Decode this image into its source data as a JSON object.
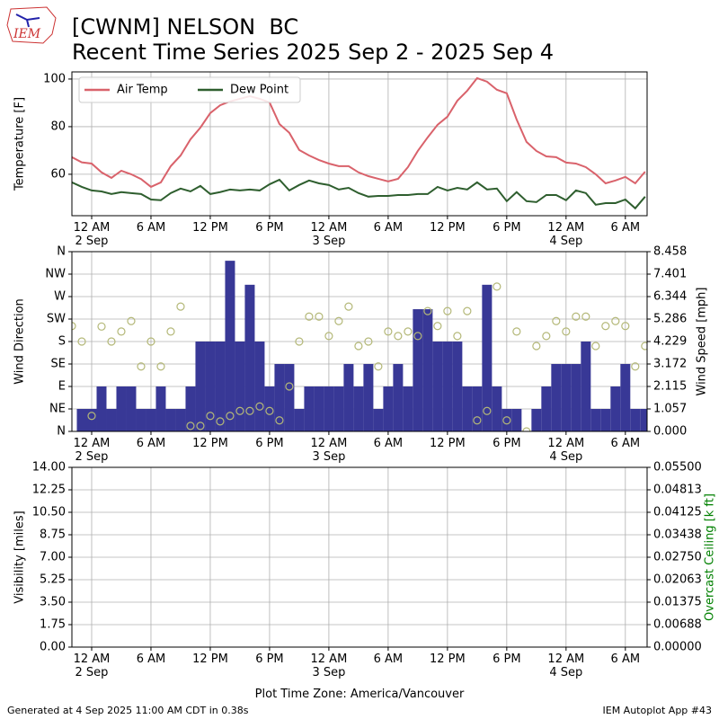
{
  "header": {
    "logo": "IEM",
    "title": "[CWNM] NELSON  BC",
    "subtitle": "Recent Time Series 2025 Sep 2 - 2025 Sep 4"
  },
  "footer": {
    "left": "Generated at 4 Sep 2025 11:00 AM CDT in 0.38s",
    "right": "IEM Autoplot App #43"
  },
  "chart_data": [
    {
      "type": "line",
      "ylabel": "Temperature [F]",
      "legend": "upper left",
      "grid": true,
      "xlim": [
        -2,
        56.2
      ],
      "ylim": [
        42.6,
        103
      ],
      "xticks": [
        {
          "value": 0,
          "label": "12 AM\n2 Sep"
        },
        {
          "value": 6,
          "label": "6 AM"
        },
        {
          "value": 12,
          "label": "12 PM"
        },
        {
          "value": 18,
          "label": "6 PM"
        },
        {
          "value": 24,
          "label": "12 AM\n3 Sep"
        },
        {
          "value": 30,
          "label": "6 AM"
        },
        {
          "value": 36,
          "label": "12 PM"
        },
        {
          "value": 42,
          "label": "6 PM"
        },
        {
          "value": 48,
          "label": "12 AM\n4 Sep"
        },
        {
          "value": 54,
          "label": "6 AM"
        }
      ],
      "yticks": [
        60,
        80,
        100
      ],
      "series": [
        {
          "name": "Air Temp",
          "type": "line",
          "color": "#d9626b",
          "x": [
            -2,
            -1,
            0,
            1,
            2,
            3,
            4,
            5,
            6,
            7,
            8,
            9,
            10,
            11,
            12,
            13,
            14,
            15,
            16,
            17,
            18,
            19,
            20,
            21,
            22,
            23,
            24,
            25,
            26,
            27,
            28,
            29,
            30,
            31,
            32,
            33,
            34,
            35,
            36,
            37,
            38,
            39,
            40,
            41,
            42,
            43,
            44,
            45,
            46,
            47,
            48,
            49,
            50,
            51,
            52,
            53,
            54,
            55,
            56
          ],
          "values": [
            67.2,
            65,
            64.5,
            60.8,
            58.5,
            61.5,
            60,
            58,
            54.7,
            56.6,
            63.4,
            67.9,
            74.7,
            79.6,
            85.7,
            89,
            90.6,
            91.7,
            92.8,
            91.7,
            90.2,
            81.1,
            77.4,
            70.2,
            67.9,
            66,
            64.5,
            63.4,
            63.4,
            60.8,
            59.2,
            58.1,
            57,
            58.1,
            63,
            69.8,
            75.5,
            80.8,
            84.2,
            90.9,
            95.1,
            100.4,
            98.9,
            95.5,
            94,
            83,
            73.6,
            69.8,
            67.5,
            67.2,
            64.9,
            64.5,
            63,
            60,
            56.2,
            57.4,
            58.9,
            56.2,
            61.1
          ]
        },
        {
          "name": "Dew Point",
          "type": "line",
          "color": "#2e5e2e",
          "x": [
            -2,
            -1,
            0,
            1,
            2,
            3,
            4,
            5,
            6,
            7,
            8,
            9,
            10,
            11,
            12,
            13,
            14,
            15,
            16,
            17,
            18,
            19,
            20,
            21,
            22,
            23,
            24,
            25,
            26,
            27,
            28,
            29,
            30,
            31,
            32,
            33,
            34,
            35,
            36,
            37,
            38,
            39,
            40,
            41,
            42,
            43,
            44,
            45,
            46,
            47,
            48,
            49,
            50,
            51,
            52,
            53,
            54,
            55,
            56
          ],
          "values": [
            56.6,
            54.7,
            53.2,
            52.8,
            51.7,
            52.5,
            52.1,
            51.7,
            49.4,
            49.1,
            52.1,
            54,
            52.8,
            55.1,
            51.7,
            52.5,
            53.6,
            53.2,
            53.6,
            53.2,
            55.8,
            57.7,
            53.2,
            55.5,
            57.4,
            56.2,
            55.5,
            53.6,
            54.3,
            52.1,
            50.6,
            50.9,
            50.9,
            51.3,
            51.3,
            51.7,
            51.7,
            54.7,
            53.2,
            54.3,
            53.6,
            56.6,
            53.6,
            54,
            48.7,
            52.5,
            48.7,
            48.3,
            51.3,
            51.3,
            49.1,
            53.2,
            52.1,
            47.2,
            47.9,
            47.9,
            49.4,
            45.7,
            50.6
          ]
        }
      ]
    },
    {
      "type": "combo",
      "ylabel": "Wind Direction",
      "y2label": "Wind Speed [mph]",
      "grid": true,
      "xlim": [
        -2,
        56.2
      ],
      "ylim": [
        0,
        360
      ],
      "y2lim": [
        0,
        8.458
      ],
      "xticks": [
        {
          "value": 0,
          "label": "12 AM\n2 Sep"
        },
        {
          "value": 6,
          "label": "6 AM"
        },
        {
          "value": 12,
          "label": "12 PM"
        },
        {
          "value": 18,
          "label": "6 PM"
        },
        {
          "value": 24,
          "label": "12 AM\n3 Sep"
        },
        {
          "value": 30,
          "label": "6 AM"
        },
        {
          "value": 36,
          "label": "12 PM"
        },
        {
          "value": 42,
          "label": "6 PM"
        },
        {
          "value": 48,
          "label": "12 AM\n4 Sep"
        },
        {
          "value": 54,
          "label": "6 AM"
        }
      ],
      "yticks": [
        {
          "value": 0,
          "label": "N"
        },
        {
          "value": 45,
          "label": "NE"
        },
        {
          "value": 90,
          "label": "E"
        },
        {
          "value": 135,
          "label": "SE"
        },
        {
          "value": 180,
          "label": "S"
        },
        {
          "value": 225,
          "label": "SW"
        },
        {
          "value": 270,
          "label": "W"
        },
        {
          "value": 315,
          "label": "NW"
        },
        {
          "value": 360,
          "label": "N"
        }
      ],
      "y2ticks": [
        {
          "value": 0,
          "label": "0.000"
        },
        1.057,
        2.115,
        3.172,
        4.229,
        5.286,
        6.344,
        7.401,
        8.458
      ],
      "series": [
        {
          "type": "bar",
          "axis": "y2",
          "color": "#383896",
          "x": [
            -1,
            0,
            1,
            2,
            3,
            4,
            5,
            6,
            7,
            8,
            9,
            10,
            11,
            12,
            13,
            14,
            15,
            16,
            17,
            18,
            19,
            20,
            21,
            22,
            23,
            24,
            25,
            26,
            27,
            28,
            29,
            30,
            31,
            32,
            33,
            34,
            35,
            36,
            37,
            38,
            39,
            40,
            41,
            42,
            43,
            44,
            45,
            46,
            47,
            48,
            49,
            50,
            51,
            52,
            53,
            54,
            55,
            56
          ],
          "values": [
            1.057,
            1.057,
            2.115,
            1.057,
            2.115,
            2.115,
            1.057,
            1.057,
            2.115,
            1.057,
            1.057,
            2.115,
            4.229,
            4.229,
            4.229,
            8.03,
            4.229,
            6.9,
            4.229,
            2.115,
            3.172,
            3.172,
            1.057,
            2.115,
            2.115,
            2.115,
            2.115,
            3.172,
            2.115,
            3.172,
            1.057,
            2.115,
            3.172,
            2.115,
            5.75,
            5.75,
            4.229,
            4.229,
            4.229,
            2.115,
            2.115,
            6.9,
            2.115,
            1.057,
            1.057,
            0,
            1.057,
            2.115,
            3.172,
            3.172,
            3.172,
            4.229,
            1.057,
            1.057,
            2.115,
            3.172,
            1.057,
            1.057
          ]
        },
        {
          "type": "scatter",
          "color": "#b4b878",
          "x": [
            -2,
            -1,
            0,
            1,
            2,
            3,
            4,
            5,
            6,
            7,
            8,
            9,
            10,
            11,
            12,
            13,
            14,
            15,
            16,
            17,
            18,
            19,
            20,
            21,
            22,
            23,
            24,
            25,
            26,
            27,
            28,
            29,
            30,
            31,
            32,
            33,
            34,
            35,
            36,
            37,
            38,
            39,
            40,
            41,
            42,
            43,
            44,
            45,
            46,
            47,
            48,
            49,
            50,
            51,
            52,
            53,
            54,
            55,
            56
          ],
          "values": [
            211,
            180,
            31,
            210,
            180,
            200,
            221,
            130,
            180,
            130,
            200,
            250,
            11,
            11,
            31,
            20,
            31,
            41,
            41,
            50,
            41,
            22,
            90,
            180,
            230,
            230,
            191,
            221,
            250,
            171,
            180,
            130,
            200,
            191,
            200,
            191,
            241,
            211,
            241,
            191,
            241,
            22,
            41,
            290,
            22,
            200,
            0,
            171,
            191,
            221,
            200,
            230,
            230,
            171,
            211,
            221,
            211,
            130,
            171
          ]
        }
      ]
    },
    {
      "type": "line",
      "ylabel": "Visibility [miles]",
      "y2label": "Overcast Ceiling [k ft]",
      "y2label_color": "#008000",
      "xlabel": "Plot Time Zone: America/Vancouver",
      "grid": true,
      "xlim": [
        -2,
        56.2
      ],
      "ylim": [
        0,
        14
      ],
      "y2lim": [
        0,
        0.055
      ],
      "xticks": [
        {
          "value": 0,
          "label": "12 AM\n2 Sep"
        },
        {
          "value": 6,
          "label": "6 AM"
        },
        {
          "value": 12,
          "label": "12 PM"
        },
        {
          "value": 18,
          "label": "6 PM"
        },
        {
          "value": 24,
          "label": "12 AM\n3 Sep"
        },
        {
          "value": 30,
          "label": "6 AM"
        },
        {
          "value": 36,
          "label": "12 PM"
        },
        {
          "value": 42,
          "label": "6 PM"
        },
        {
          "value": 48,
          "label": "12 AM\n4 Sep"
        },
        {
          "value": 54,
          "label": "6 AM"
        }
      ],
      "yticks": [
        {
          "value": 0,
          "label": "0.00"
        },
        1.75,
        {
          "value": 3.5,
          "label": "3.50"
        },
        5.25,
        {
          "value": 7,
          "label": "7.00"
        },
        8.75,
        {
          "value": 10.5,
          "label": "10.50"
        },
        12.25,
        {
          "value": 14,
          "label": "14.00"
        }
      ],
      "y2ticks": [
        {
          "value": 0,
          "label": "0.00000"
        },
        {
          "value": 0.006875,
          "label": "0.00688"
        },
        0.01375,
        {
          "value": 0.020625,
          "label": "0.02063"
        },
        {
          "value": 0.0275,
          "label": "0.02750"
        },
        {
          "value": 0.034375,
          "label": "0.03438"
        },
        0.04125,
        {
          "value": 0.048125,
          "label": "0.04813"
        },
        {
          "value": 0.055,
          "label": "0.05500"
        }
      ],
      "series": []
    }
  ]
}
